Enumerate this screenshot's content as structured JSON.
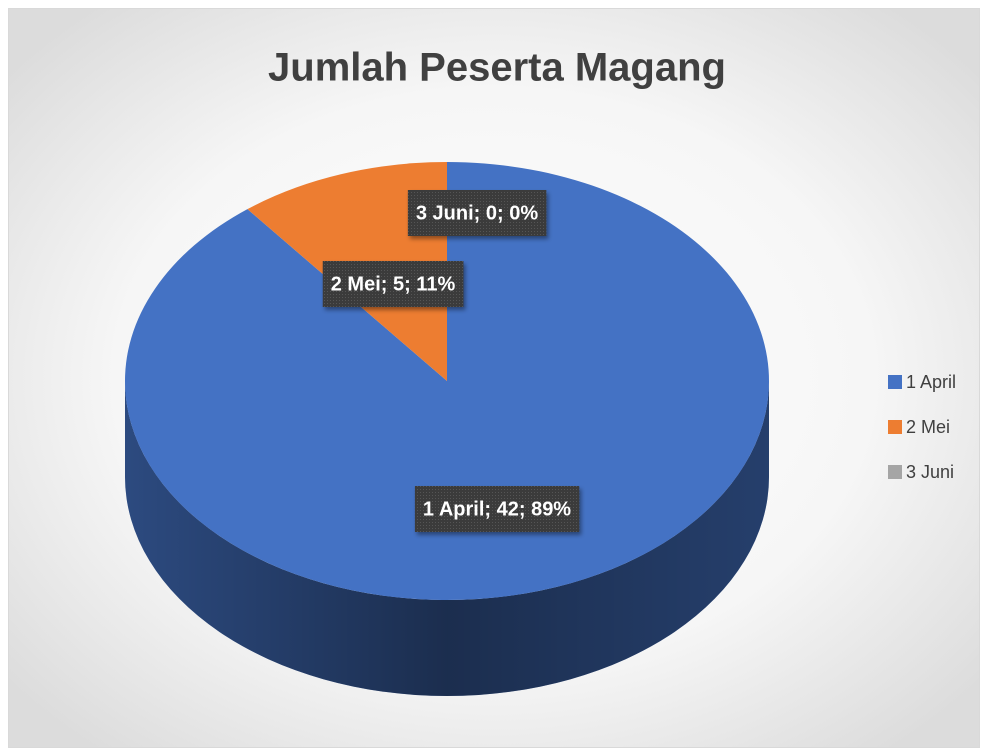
{
  "chart_data": {
    "type": "pie",
    "title": "Jumlah Peserta Magang",
    "categories": [
      "1 April",
      "2 Mei",
      "3 Juni"
    ],
    "values": [
      42,
      5,
      0
    ],
    "value_labels": [
      "1 April; 42; 89%",
      "2 Mei; 5; 11%",
      "3 Juni; 0; 0%"
    ],
    "colors": [
      "#4472c4",
      "#ed7d31",
      "#a5a5a5"
    ],
    "legend": "right",
    "three_d": true
  }
}
